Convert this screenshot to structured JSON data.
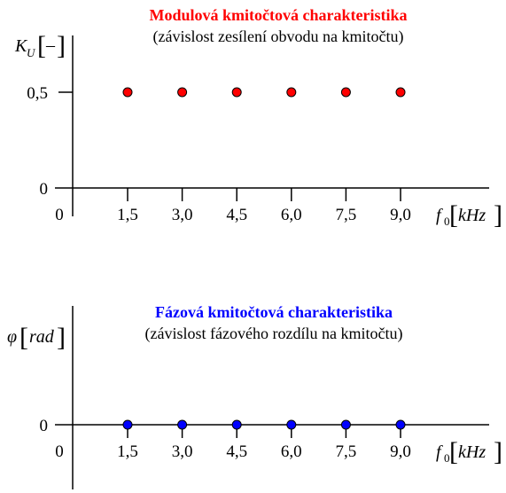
{
  "chart_data": [
    {
      "type": "scatter",
      "title": "Modulová kmitočtová charakteristika",
      "subtitle": "(závislost zesílení obvodu na kmitočtu)",
      "ylabel": {
        "symbol": "K",
        "subscript": "U",
        "unit": "–"
      },
      "xlabel": {
        "symbol": "f",
        "subscript": "0",
        "unit": "kHz"
      },
      "origin_label": "0",
      "x_tick_labels": [
        "1,5",
        "3,0",
        "4,5",
        "6,0",
        "7,5",
        "9,0"
      ],
      "y_tick_labels": [
        "0,5",
        "0"
      ],
      "y_ticks": [
        0.5,
        0
      ],
      "x": [
        1.5,
        3.0,
        4.5,
        6.0,
        7.5,
        9.0
      ],
      "y": [
        0.5,
        0.5,
        0.5,
        0.5,
        0.5,
        0.5
      ],
      "ylim": [
        0,
        0.5
      ],
      "marker_color": "#ff0000",
      "title_color": "#ff0000"
    },
    {
      "type": "scatter",
      "title": "Fázová kmitočtová charakteristika",
      "subtitle": "(závislost fázového rozdílu na kmitočtu)",
      "ylabel": {
        "symbol": "φ",
        "unit": "rad"
      },
      "xlabel": {
        "symbol": "f",
        "subscript": "0",
        "unit": "kHz"
      },
      "origin_label": "0",
      "x_tick_labels": [
        "1,5",
        "3,0",
        "4,5",
        "6,0",
        "7,5",
        "9,0"
      ],
      "y_tick_labels": [
        "0"
      ],
      "y_ticks": [
        0
      ],
      "x": [
        1.5,
        3.0,
        4.5,
        6.0,
        7.5,
        9.0
      ],
      "y": [
        0,
        0,
        0,
        0,
        0,
        0
      ],
      "marker_color": "#0000ff",
      "title_color": "#0000ff"
    }
  ]
}
